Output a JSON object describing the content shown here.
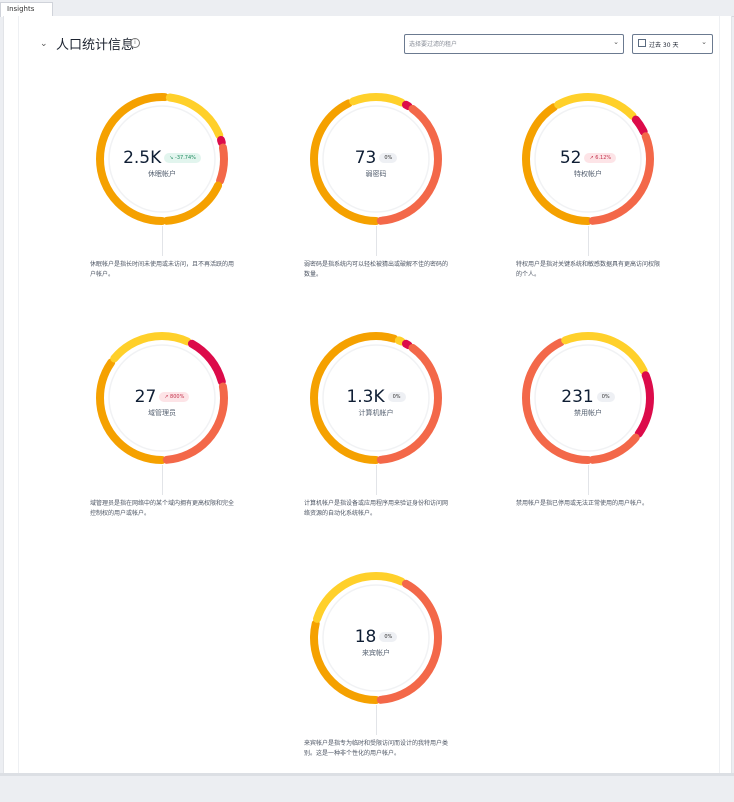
{
  "tab": {
    "label": "Insights"
  },
  "header": {
    "title": "人口统计信息",
    "info_icon": "info-icon",
    "filter_placeholder": "选择要过滤的租户",
    "date_label": "过去 30 天"
  },
  "colors": {
    "darkorange": "#f5a100",
    "yellow": "#ffd02a",
    "coral": "#f36849",
    "crimson": "#dc0b4a"
  },
  "cards": [
    {
      "value": "2.5K",
      "trend": "-37.74%",
      "trend_type": "neg",
      "label": "休眠帐户",
      "desc": "休眠帐户是指长时间未使用或未访问，且不再活跃的用户帐户。",
      "segments": [
        0.52,
        0.18,
        0.02,
        0.1,
        0.18
      ],
      "segcolors": [
        "#f5a100",
        "#ffd02a",
        "#dc0b4a",
        "#f36849",
        "#f5a100"
      ]
    },
    {
      "value": "73",
      "trend": "0%",
      "trend_type": "zero",
      "label": "弱密码",
      "desc": "弱密码是指系统内可以轻松被猜出或破解不佳的密码的数量。",
      "segments": [
        0.44,
        0.14,
        0.02,
        0.4
      ],
      "segcolors": [
        "#f5a100",
        "#ffd02a",
        "#dc0b4a",
        "#f36849"
      ]
    },
    {
      "value": "52",
      "trend": "6.12%",
      "trend_type": "pos",
      "label": "特权帐户",
      "desc": "特权用户是指对关键系统和敏感数据具有更高访问权限的个人。",
      "segments": [
        0.42,
        0.22,
        0.05,
        0.31
      ],
      "segcolors": [
        "#f5a100",
        "#ffd02a",
        "#dc0b4a",
        "#f36849"
      ]
    },
    {
      "value": "27",
      "trend": "800%",
      "trend_type": "pos",
      "label": "域管理员",
      "desc": "域管理员是指在网络中的某个域内拥有更高权限和完全控制权的用户或帐户。",
      "segments": [
        0.36,
        0.22,
        0.14,
        0.28
      ],
      "segcolors": [
        "#f5a100",
        "#ffd02a",
        "#dc0b4a",
        "#f36849"
      ]
    },
    {
      "value": "1.3K",
      "trend": "0%",
      "trend_type": "zero",
      "label": "计算机帐户",
      "desc": "计算机帐户是指设备或应用程序用来验证身份和访问网络资源的自动化系统帐户。",
      "segments": [
        0.56,
        0.02,
        0.02,
        0.4
      ],
      "segcolors": [
        "#f5a100",
        "#ffd02a",
        "#dc0b4a",
        "#f36849"
      ]
    },
    {
      "value": "231",
      "trend": "0%",
      "trend_type": "zero",
      "label": "禁用帐户",
      "desc": "禁用帐户是指已停用或无法正常使用的用户帐户。",
      "segments": [
        0.44,
        0.25,
        0.17,
        0.14
      ],
      "segcolors": [
        "#f36849",
        "#ffd02a",
        "#dc0b4a",
        "#f36849"
      ]
    },
    {
      "value": "18",
      "trend": "0%",
      "trend_type": "zero",
      "label": "来宾帐户",
      "desc": "来宾帐户是指专为临时和受限访问而设计的我特用户类别。这是一种非个性化的用户帐户。",
      "segments": [
        0.3,
        0.28,
        0.42
      ],
      "segcolors": [
        "#f5a100",
        "#ffd02a",
        "#f36849"
      ]
    }
  ]
}
